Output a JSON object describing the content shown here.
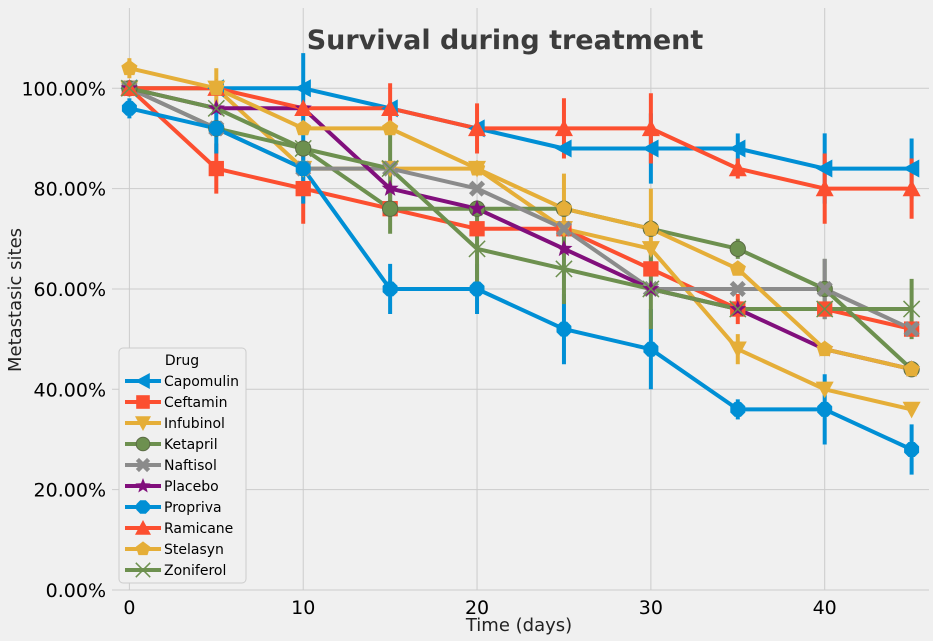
{
  "chart_data": {
    "type": "line",
    "title": "Survival during treatment",
    "xlabel": "Time (days)",
    "ylabel": "Metastasic sites",
    "xlim": [
      -1,
      46
    ],
    "ylim": [
      0,
      1.16
    ],
    "x_ticks": [
      0,
      10,
      20,
      30,
      40
    ],
    "y_ticks": [
      0,
      0.2,
      0.4,
      0.6,
      0.8,
      1.0
    ],
    "y_tick_labels": [
      "0.00%",
      "20.00%",
      "40.00%",
      "60.00%",
      "80.00%",
      "100.00%"
    ],
    "grid": true,
    "legend_title": "Drug",
    "legend_position": "lower-left",
    "x": [
      0,
      5,
      10,
      15,
      20,
      25,
      30,
      35,
      40,
      45
    ],
    "series": [
      {
        "name": "Capomulin",
        "color": "#008fd5",
        "marker": "triangle-left",
        "values": [
          1.0,
          1.0,
          1.0,
          0.96,
          0.92,
          0.88,
          0.88,
          0.88,
          0.84,
          0.84
        ],
        "errors": [
          0,
          0,
          0.07,
          0,
          0,
          0,
          0.07,
          0.03,
          0.07,
          0.06
        ]
      },
      {
        "name": "Ceftamin",
        "color": "#fc4f30",
        "marker": "square",
        "values": [
          1.0,
          0.84,
          0.8,
          0.76,
          0.72,
          0.72,
          0.64,
          0.56,
          0.56,
          0.52
        ],
        "errors": [
          0,
          0.05,
          0.07,
          0,
          0,
          0,
          0,
          0.03,
          0,
          0
        ]
      },
      {
        "name": "Infubinol",
        "color": "#e5ae38",
        "marker": "triangle-down",
        "values": [
          1.0,
          1.0,
          0.84,
          0.84,
          0.84,
          0.72,
          0.68,
          0.48,
          0.4,
          0.36
        ],
        "errors": [
          0,
          0,
          0,
          0,
          0,
          0,
          0,
          0.03,
          0,
          0
        ]
      },
      {
        "name": "Ketapril",
        "color": "#6d904f",
        "marker": "circle",
        "values": [
          1.0,
          0.92,
          0.88,
          0.76,
          0.76,
          0.76,
          0.72,
          0.68,
          0.6,
          0.44
        ],
        "errors": [
          0,
          0,
          0,
          0.05,
          0,
          0,
          0,
          0.02,
          0.06,
          0
        ]
      },
      {
        "name": "Naftisol",
        "color": "#8b8b8b",
        "marker": "x-thick",
        "values": [
          1.0,
          0.92,
          0.84,
          0.84,
          0.8,
          0.72,
          0.6,
          0.6,
          0.6,
          0.52
        ],
        "errors": [
          0,
          0,
          0,
          0,
          0,
          0,
          0,
          0,
          0.06,
          0
        ]
      },
      {
        "name": "Placebo",
        "color": "#810f7c",
        "marker": "star",
        "values": [
          1.0,
          0.96,
          0.96,
          0.8,
          0.76,
          0.68,
          0.6,
          0.56,
          0.48,
          0.44
        ],
        "errors": [
          0,
          0,
          0,
          0,
          0,
          0,
          0,
          0,
          0,
          0
        ]
      },
      {
        "name": "Propriva",
        "color": "#008fd5",
        "marker": "octagon",
        "values": [
          0.96,
          0.92,
          0.84,
          0.6,
          0.6,
          0.52,
          0.48,
          0.36,
          0.36,
          0.28
        ],
        "errors": [
          0.02,
          0.05,
          0.07,
          0.05,
          0.05,
          0.07,
          0.08,
          0.02,
          0.07,
          0.05
        ]
      },
      {
        "name": "Ramicane",
        "color": "#fc4f30",
        "marker": "triangle-up",
        "values": [
          1.0,
          1.0,
          0.96,
          0.96,
          0.92,
          0.92,
          0.92,
          0.84,
          0.8,
          0.8
        ],
        "errors": [
          0,
          0,
          0,
          0.05,
          0.05,
          0.06,
          0.07,
          0.02,
          0.07,
          0.06
        ]
      },
      {
        "name": "Stelasyn",
        "color": "#e5ae38",
        "marker": "pentagon",
        "values": [
          1.04,
          1.0,
          0.92,
          0.92,
          0.84,
          0.76,
          0.72,
          0.64,
          0.48,
          0.44
        ],
        "errors": [
          0.02,
          0.04,
          0,
          0,
          0,
          0.07,
          0.08,
          0,
          0,
          0
        ]
      },
      {
        "name": "Zoniferol",
        "color": "#6d904f",
        "marker": "x-thin",
        "values": [
          1.0,
          0.96,
          0.88,
          0.84,
          0.68,
          0.64,
          0.6,
          0.56,
          0.56,
          0.56
        ],
        "errors": [
          0,
          0,
          0,
          0.08,
          0.07,
          0.07,
          0.08,
          0,
          0,
          0.06
        ]
      }
    ]
  }
}
